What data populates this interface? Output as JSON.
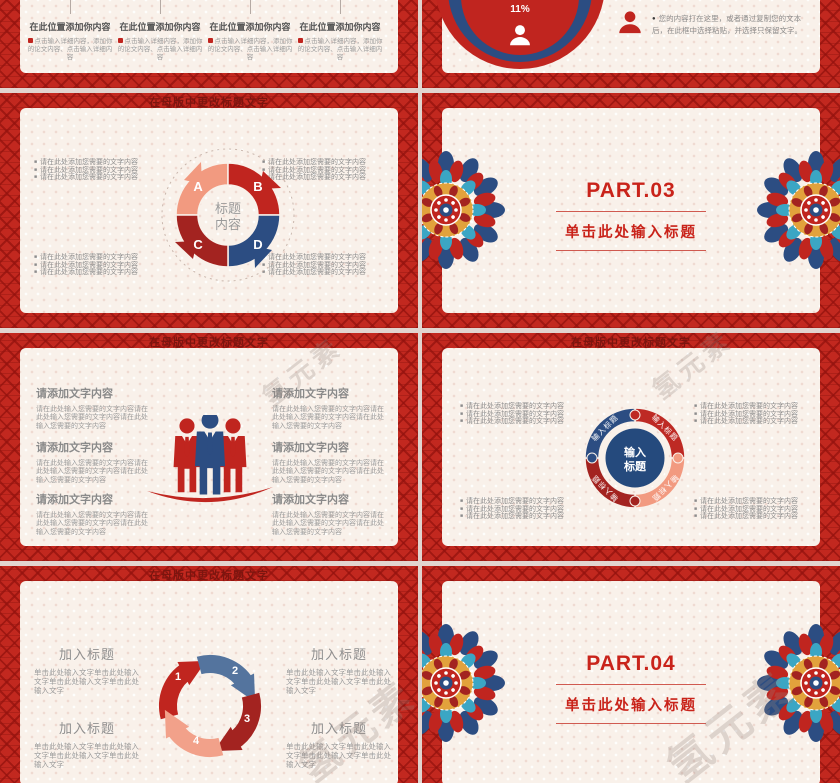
{
  "ui": {
    "bullet_char": "■",
    "dot_char": "●",
    "watermark": "氢元素"
  },
  "palette": {
    "red": "#c0251f",
    "dark_red": "#a32320",
    "border_red": "#c2281f",
    "navy": "#2c4d82",
    "steel_blue": "#54749e",
    "salmon": "#f29a80",
    "teal": "#3ba6c4",
    "gold": "#e2a23c",
    "cream": "#f9f1ea",
    "part_red": "#c9231a",
    "title_maroon": "#7c150f",
    "gray_text": "#8c8c8c"
  },
  "slides": {
    "s1": {
      "heading": "在此位置添加你内容",
      "body": "点击输入详细内容，添加你的论文内容、点击输入详细内容"
    },
    "s2": {
      "percent": "11%",
      "note": "您的内容打在这里，或者通过复制您的文本后，在此框中选择粘贴，并选择只保留文字。"
    },
    "s3": {
      "title": "在母版中更改标题文字",
      "bullet": "请在此处添加您需要的文字内容",
      "labels": {
        "a": "A",
        "b": "B",
        "c": "C",
        "d": "D"
      },
      "center_top": "标题",
      "center_bottom": "内容"
    },
    "s4": {
      "part": "PART.03",
      "subtitle": "单击此处输入标题"
    },
    "s5": {
      "title": "在母版中更改标题文字",
      "heading": "请添加文字内容",
      "body": "请在此处输入您需要的文字内容请在此处输入您需要的文字内容请在此处输入您需要的文字内容"
    },
    "s6": {
      "title": "在母版中更改标题文字",
      "bullet": "请在此处添加您需要的文字内容",
      "segment": "输入标题",
      "center_top": "输入",
      "center_bottom": "标题"
    },
    "s7": {
      "title": "在母版中更改标题文字",
      "heading": "加入标题",
      "body": "单击此处输入文字单击此处输入文字单击此处输入文字单击此处输入文字",
      "n1": "1",
      "n2": "2",
      "n3": "3",
      "n4": "4"
    },
    "s8": {
      "part": "PART.04",
      "subtitle": "单击此处输入标题"
    }
  }
}
